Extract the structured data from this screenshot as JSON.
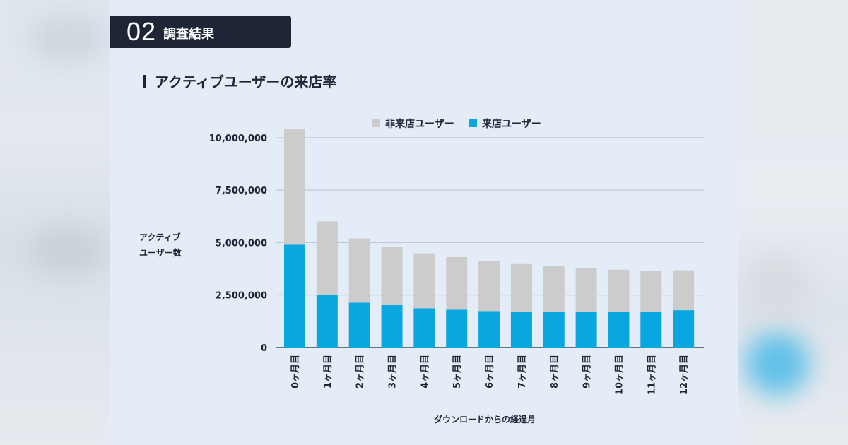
{
  "section": {
    "number": "02",
    "title": "調査結果"
  },
  "heading": "アクティブユーザーの来店率",
  "chart_data": {
    "type": "bar",
    "stacked": true,
    "categories": [
      "0ヶ月目",
      "1ヶ月目",
      "2ヶ月目",
      "3ヶ月目",
      "4ヶ月目",
      "5ヶ月目",
      "6ヶ月目",
      "7ヶ月目",
      "8ヶ月目",
      "9ヶ月目",
      "10ヶ月目",
      "11ヶ月目",
      "12ヶ月目"
    ],
    "series": [
      {
        "name": "来店ユーザー",
        "color": "#0aa6e0",
        "values": [
          4900000,
          2490000,
          2140000,
          2020000,
          1870000,
          1800000,
          1740000,
          1720000,
          1690000,
          1690000,
          1690000,
          1720000,
          1780000
        ]
      },
      {
        "name": "非来店ユーザー",
        "color": "#cccccc",
        "values": [
          5500000,
          3520000,
          3060000,
          2760000,
          2620000,
          2510000,
          2390000,
          2260000,
          2180000,
          2080000,
          2020000,
          1940000,
          1900000
        ]
      }
    ],
    "legend_order": [
      "非来店ユーザー",
      "来店ユーザー"
    ],
    "legend_position": "top",
    "xlabel": "ダウンロードからの経過月",
    "ylabel_lines": [
      "アクティブ",
      "ユーザー数"
    ],
    "yticks": [
      0,
      2500000,
      5000000,
      7500000,
      10000000
    ],
    "ytick_labels": [
      "0",
      "2,500,000",
      "5,000,000",
      "7,500,000",
      "10,000,000"
    ],
    "ylim": [
      0,
      10500000
    ],
    "grid": true
  }
}
